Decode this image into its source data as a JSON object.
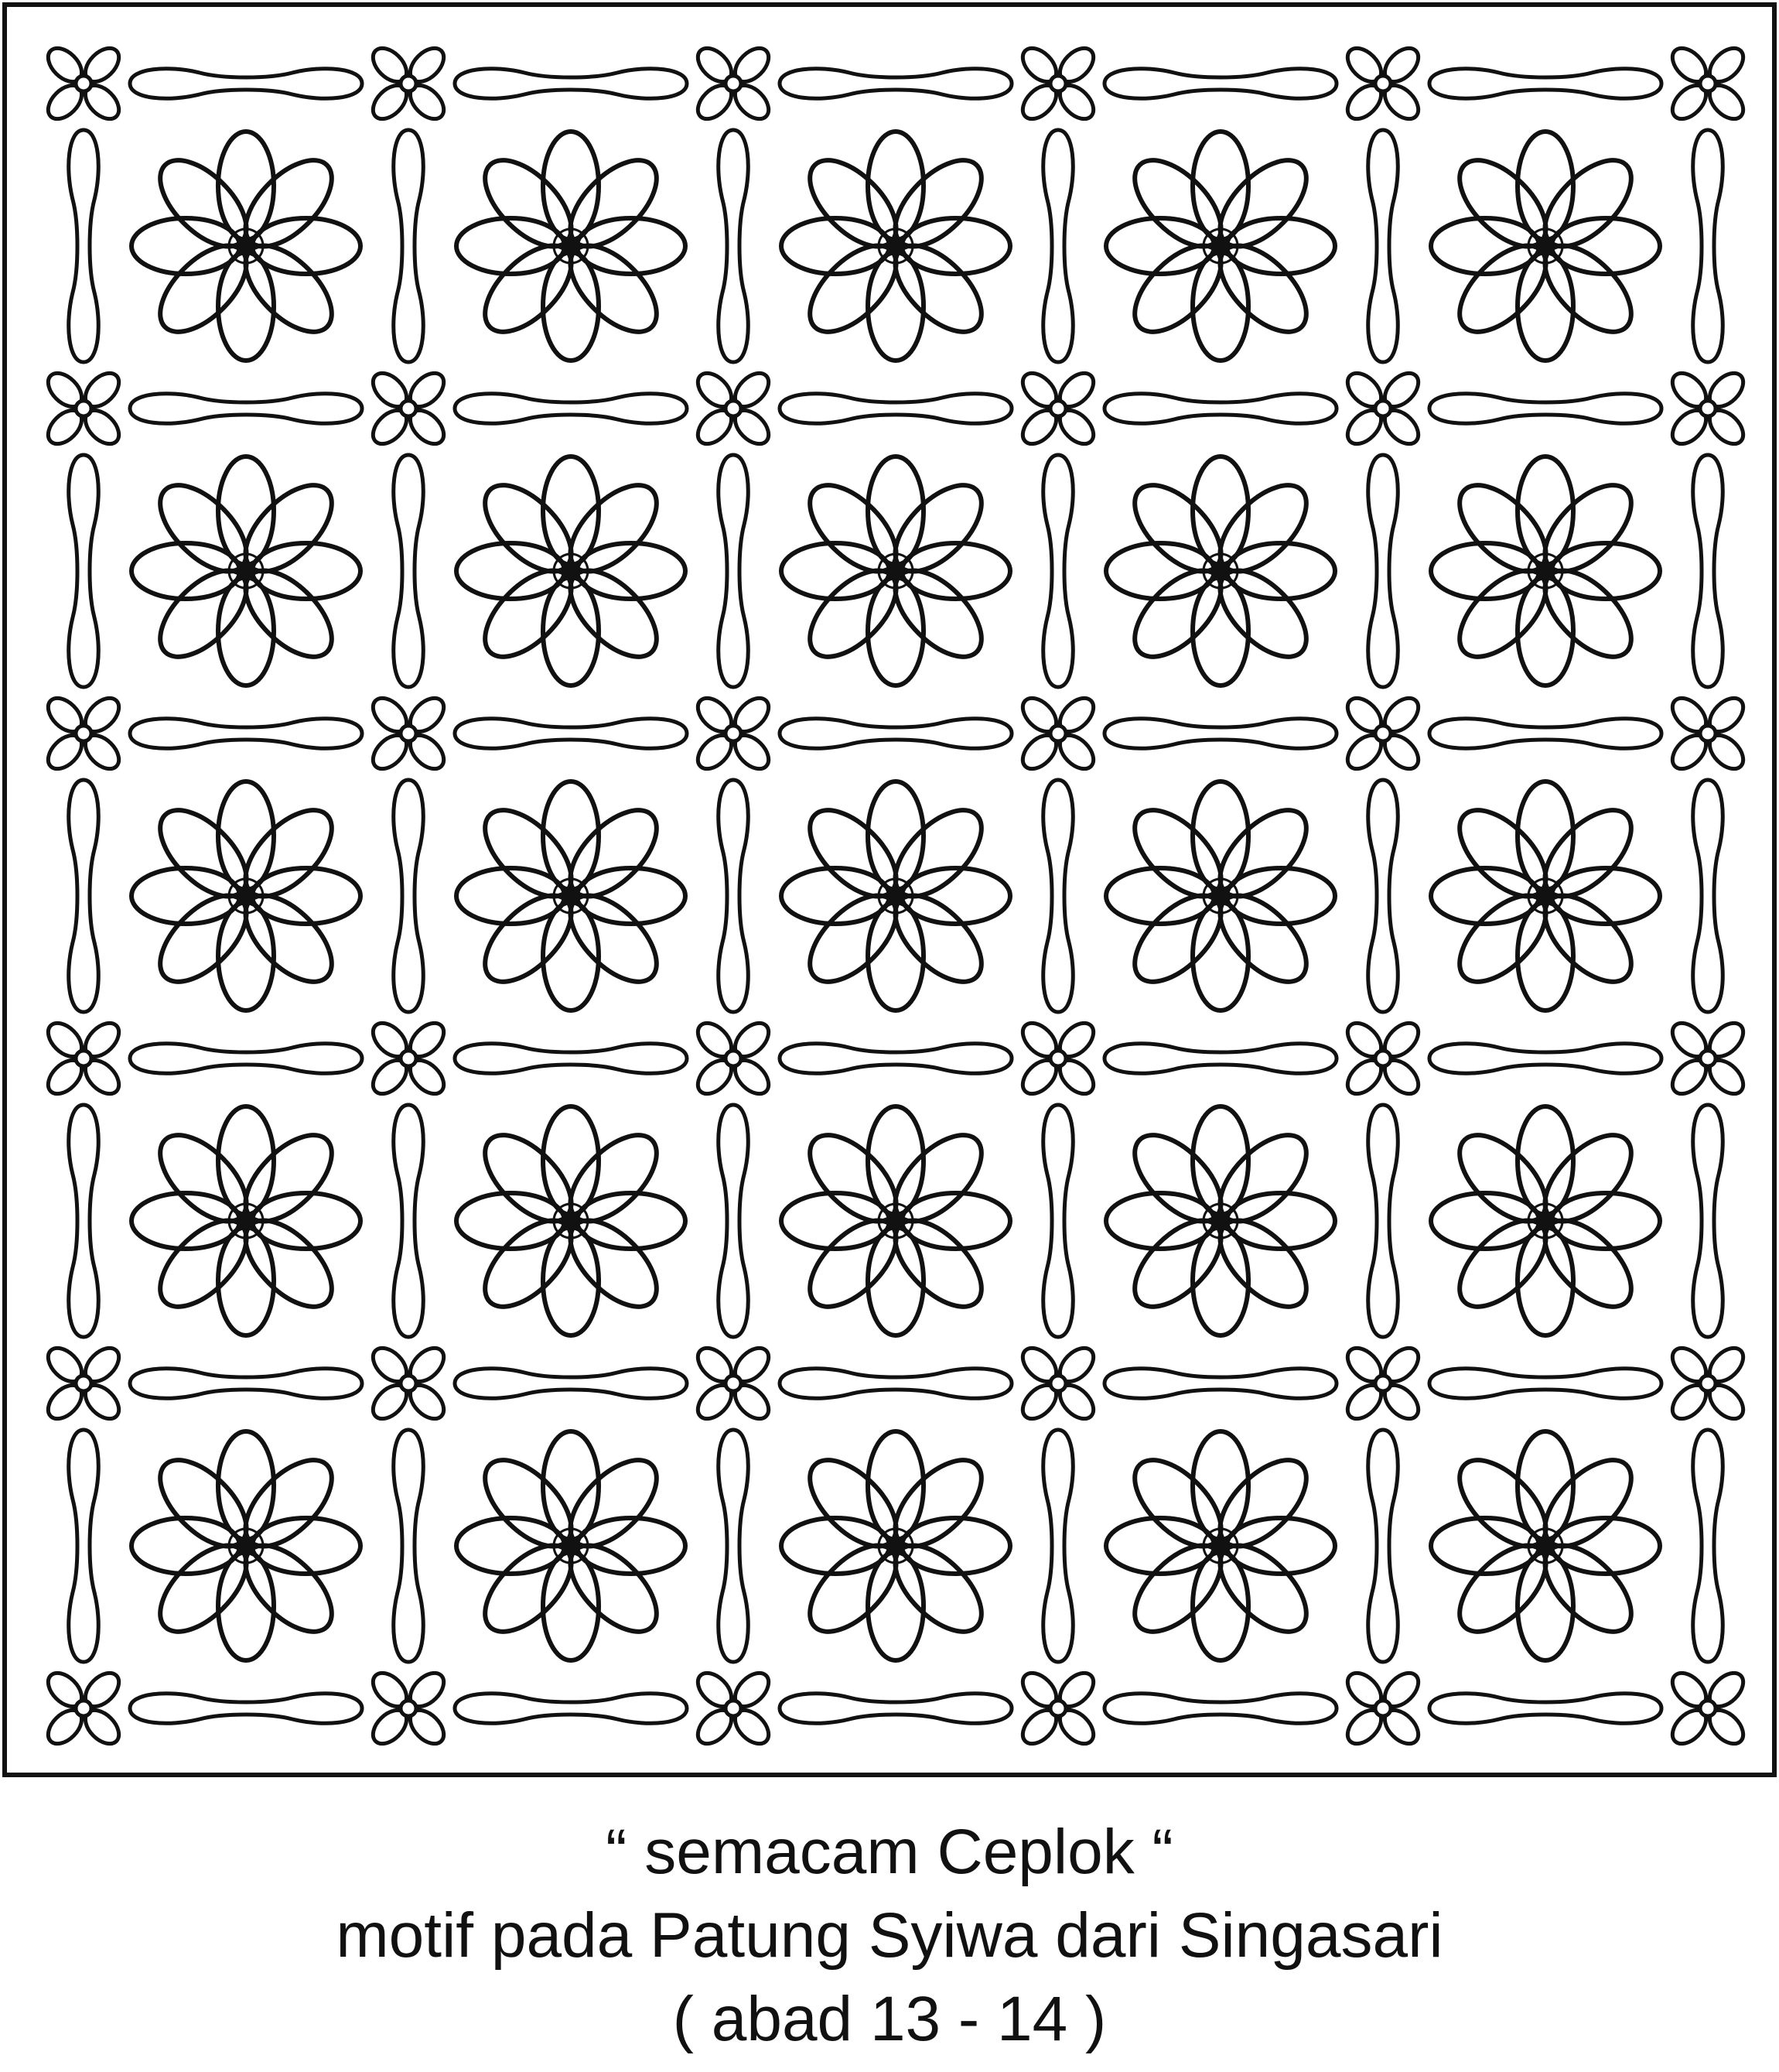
{
  "caption": {
    "line1": "“ semacam Ceplok “",
    "line2": "motif pada Patung Syiwa dari Singasari",
    "line3": "( abad 13 - 14 )"
  },
  "pattern": {
    "grid_rows": 5,
    "grid_cols": 5,
    "main_motif_petals": 8,
    "ink_color": "#111111",
    "paper_color": "#ffffff",
    "motif_icon": "eight-petal-flower-icon",
    "junction_icon": "four-petal-flower-icon",
    "connector_icon": "elongated-leaf-icon"
  }
}
